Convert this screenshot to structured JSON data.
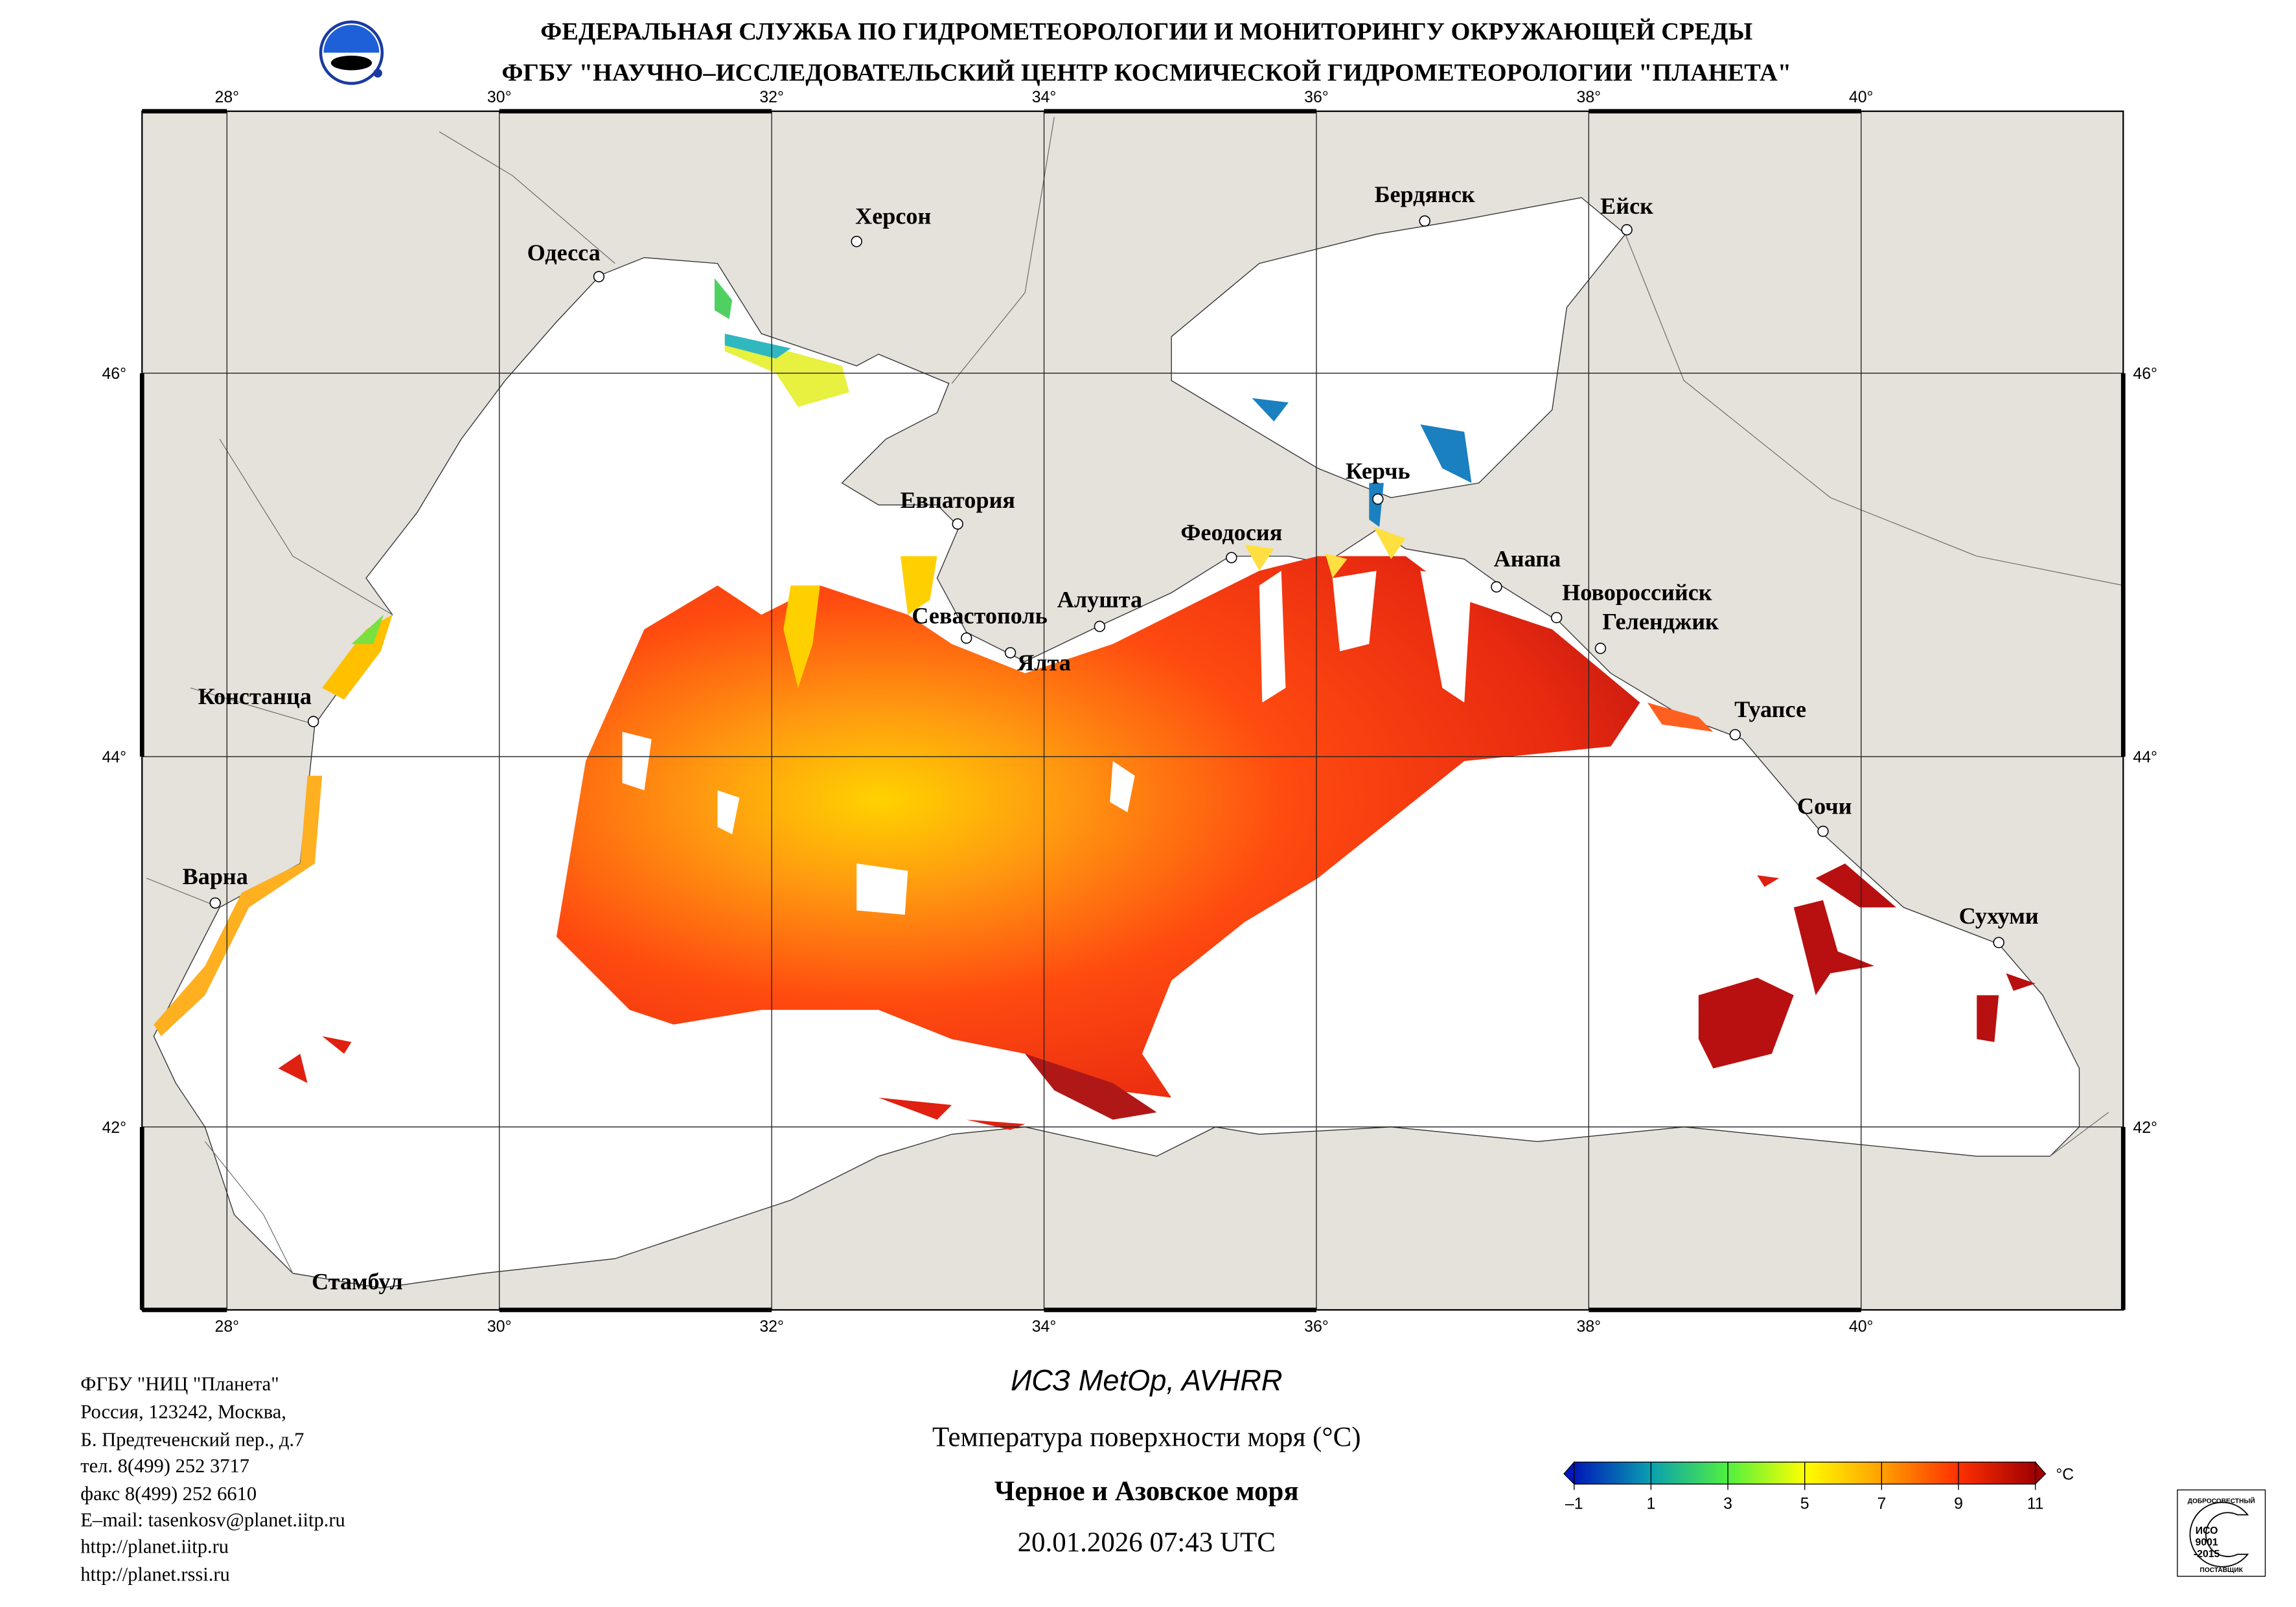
{
  "header": {
    "line1": "ФЕДЕРАЛЬНАЯ СЛУЖБА ПО ГИДРОМЕТЕОРОЛОГИИ И МОНИТОРИНГУ ОКРУЖАЮЩЕЙ СРЕДЫ",
    "line2": "ФГБУ \"НАУЧНО–ИССЛЕДОВАТЕЛЬСКИЙ ЦЕНТР КОСМИЧЕСКОЙ ГИДРОМЕТЕОРОЛОГИИ \"ПЛАНЕТА\""
  },
  "map": {
    "lon_labels": [
      "28°",
      "30°",
      "32°",
      "34°",
      "36°",
      "38°",
      "40°"
    ],
    "lat_labels": [
      "46°",
      "44°",
      "42°"
    ],
    "cities": [
      "Одесса",
      "Херсон",
      "Бердянск",
      "Ейск",
      "Евпатория",
      "Керчь",
      "Феодосия",
      "Анапа",
      "Новороссийск",
      "Геленджик",
      "Севастополь",
      "Алушта",
      "Ялта",
      "Туапсе",
      "Констанца",
      "Сочи",
      "Варна",
      "Сухуми",
      "Стамбул"
    ]
  },
  "footer": {
    "org_lines": [
      "ФГБУ \"НИЦ \"Планета\"",
      "Россия, 123242, Москва,",
      "Б. Предтеченский пер., д.7",
      "тел. 8(499) 252 3717",
      "факс 8(499) 252 6610",
      "E–mail: tasenkosv@planet.iitp.ru",
      "http://planet.iitp.ru",
      "http://planet.rssi.ru"
    ],
    "satellite": "ИСЗ MetOp, AVHRR",
    "product": "Температура поверхности моря (°C)",
    "region": "Черное и Азовское моря",
    "datetime": "20.01.2026 07:43 UTC"
  },
  "colorbar": {
    "ticks": [
      "–1",
      "1",
      "3",
      "5",
      "7",
      "9",
      "11"
    ],
    "unit": "°C",
    "colors": [
      "#0018b8",
      "#0aa0b0",
      "#50f040",
      "#ffff00",
      "#ffb000",
      "#ff3000",
      "#a00000"
    ]
  },
  "iso_badge": {
    "top": "ДОБРОСОВЕСТНЫЙ",
    "l1": "ИСО",
    "l2": "9001",
    "l3": "-2015",
    "bottom": "ПОСТАВЩИК"
  }
}
